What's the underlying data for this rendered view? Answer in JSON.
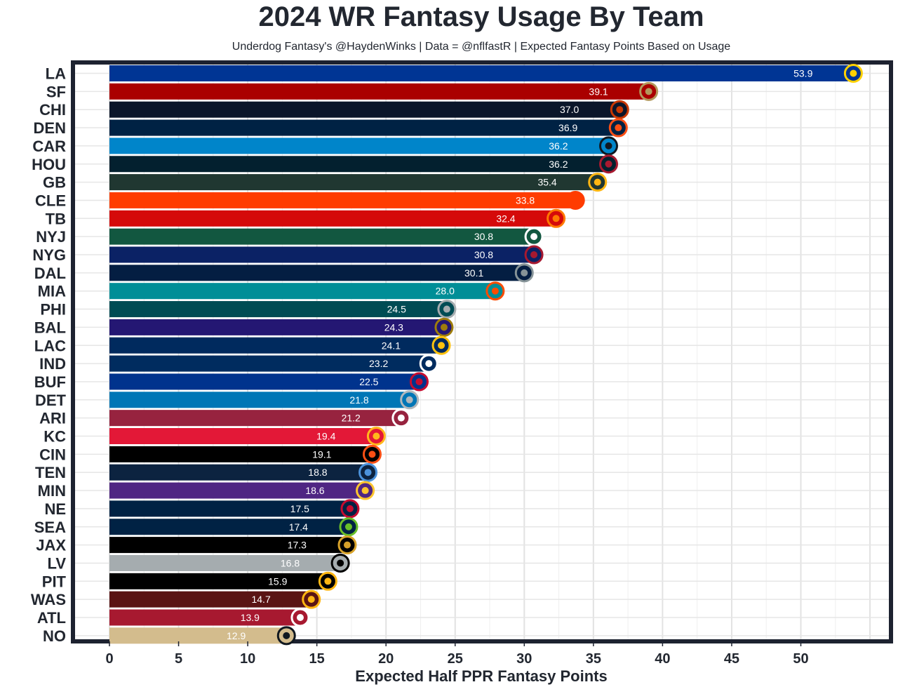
{
  "chart_data": {
    "type": "bar",
    "orientation": "horizontal",
    "title": "2024 WR Fantasy Usage By Team",
    "subtitle": "Underdog Fantasy's @HaydenWinks | Data = @nflfastR | Expected Fantasy Points Based on Usage",
    "xlabel": "Expected Half PPR Fantasy Points",
    "ylabel": "",
    "xlim": [
      0,
      55
    ],
    "xticks": [
      0,
      5,
      10,
      15,
      20,
      25,
      30,
      35,
      40,
      45,
      50
    ],
    "grid": true,
    "categories": [
      "LA",
      "SF",
      "CHI",
      "DEN",
      "CAR",
      "HOU",
      "GB",
      "CLE",
      "TB",
      "NYJ",
      "NYG",
      "DAL",
      "MIA",
      "PHI",
      "BAL",
      "LAC",
      "IND",
      "BUF",
      "DET",
      "ARI",
      "KC",
      "CIN",
      "TEN",
      "MIN",
      "NE",
      "SEA",
      "JAX",
      "LV",
      "PIT",
      "WAS",
      "ATL",
      "NO"
    ],
    "values": [
      53.9,
      39.1,
      37.0,
      36.9,
      36.2,
      36.2,
      35.4,
      33.8,
      32.4,
      30.8,
      30.8,
      30.1,
      28.0,
      24.5,
      24.3,
      24.1,
      23.2,
      22.5,
      21.8,
      21.2,
      19.4,
      19.1,
      18.8,
      18.6,
      17.5,
      17.4,
      17.3,
      16.8,
      15.9,
      14.7,
      13.9,
      12.9
    ],
    "value_labels": [
      "53.9",
      "39.1",
      "37.0",
      "36.9",
      "36.2",
      "36.2",
      "35.4",
      "33.8",
      "32.4",
      "30.8",
      "30.8",
      "30.1",
      "28.0",
      "24.5",
      "24.3",
      "24.1",
      "23.2",
      "22.5",
      "21.8",
      "21.2",
      "19.4",
      "19.1",
      "18.8",
      "18.6",
      "17.5",
      "17.4",
      "17.3",
      "16.8",
      "15.9",
      "14.7",
      "13.9",
      "12.9"
    ],
    "colors": [
      "#003594",
      "#AA0000",
      "#0B162A",
      "#002244",
      "#0085CA",
      "#03202F",
      "#203731",
      "#FF3C00",
      "#D50A0A",
      "#125740",
      "#0B2265",
      "#041E42",
      "#008E97",
      "#004C54",
      "#241773",
      "#002A5E",
      "#002C5F",
      "#00338D",
      "#0076B6",
      "#97233F",
      "#E31837",
      "#000000",
      "#0C2340",
      "#4F2683",
      "#002244",
      "#002244",
      "#000000",
      "#A5ACAF",
      "#000000",
      "#5A1414",
      "#A71930",
      "#D3BC8D"
    ],
    "logo_colors": [
      "#FFD100",
      "#B3995D",
      "#C83803",
      "#FB4F14",
      "#101820",
      "#A71930",
      "#FFB612",
      "#FF3C00",
      "#FF7900",
      "#FFFFFF",
      "#A71930",
      "#869397",
      "#FC4C02",
      "#A5ACAF",
      "#9E7C0C",
      "#FFC20E",
      "#FFFFFF",
      "#C60C30",
      "#B0B7BC",
      "#FFFFFF",
      "#FFB81C",
      "#FB4F14",
      "#4B92DB",
      "#FFC62F",
      "#C60C30",
      "#69BE28",
      "#D7A22A",
      "#000000",
      "#FFB612",
      "#FFB612",
      "#FFFFFF",
      "#101820"
    ]
  }
}
